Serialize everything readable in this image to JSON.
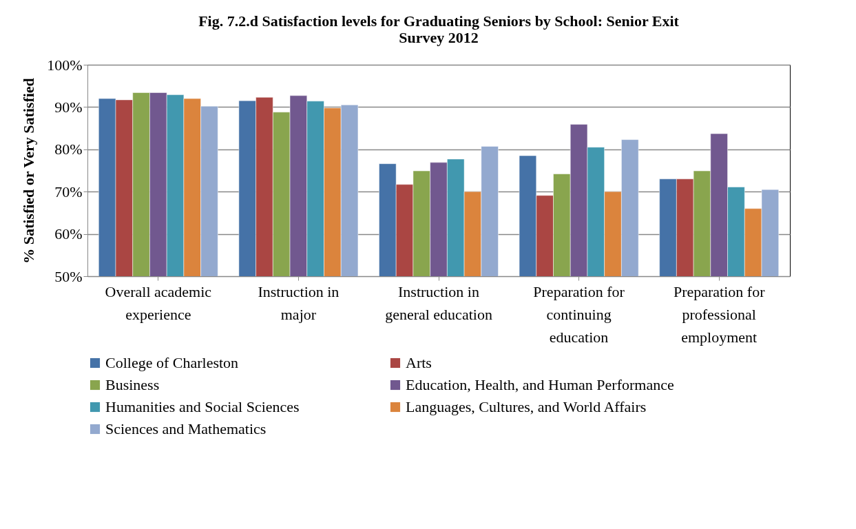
{
  "chart_data": {
    "type": "bar",
    "title": "Fig. 7.2.d  Satisfaction levels for Graduating Seniors by School: Senior Exit Survey 2012",
    "ylabel": "% Satisfied or Very Satisfied",
    "categories": [
      "Overall academic experience",
      "Instruction in major",
      "Instruction in general education",
      "Preparation for continuing education",
      "Preparation for professional employment"
    ],
    "series": [
      {
        "name": "College of Charleston",
        "color": "#4572a7",
        "values": [
          92.0,
          91.5,
          76.6,
          78.5,
          73.0
        ]
      },
      {
        "name": "Arts",
        "color": "#aa4643",
        "values": [
          91.7,
          92.3,
          71.7,
          69.1,
          73.0
        ]
      },
      {
        "name": "Business",
        "color": "#89a54e",
        "values": [
          93.4,
          88.8,
          74.9,
          74.2,
          74.9
        ]
      },
      {
        "name": "Education, Health, and Human Performance",
        "color": "#71588f",
        "values": [
          93.4,
          92.7,
          76.9,
          85.9,
          83.7
        ]
      },
      {
        "name": "Humanities and Social Sciences",
        "color": "#4198af",
        "values": [
          92.9,
          91.4,
          77.7,
          80.5,
          71.1
        ]
      },
      {
        "name": "Languages, Cultures, and World Affairs",
        "color": "#db843d",
        "values": [
          92.0,
          89.8,
          70.0,
          70.0,
          66.0
        ]
      },
      {
        "name": "Sciences and Mathematics",
        "color": "#93a9cf",
        "values": [
          90.2,
          90.5,
          80.7,
          82.3,
          70.5
        ]
      }
    ],
    "ylim": [
      50,
      100
    ],
    "yticks": [
      {
        "value": 50,
        "label": "50%"
      },
      {
        "value": 60,
        "label": "60%"
      },
      {
        "value": 70,
        "label": "70%"
      },
      {
        "value": 80,
        "label": "80%"
      },
      {
        "value": 90,
        "label": "90%"
      },
      {
        "value": 100,
        "label": "100%"
      }
    ],
    "grid": "y",
    "legend": "bottom"
  }
}
